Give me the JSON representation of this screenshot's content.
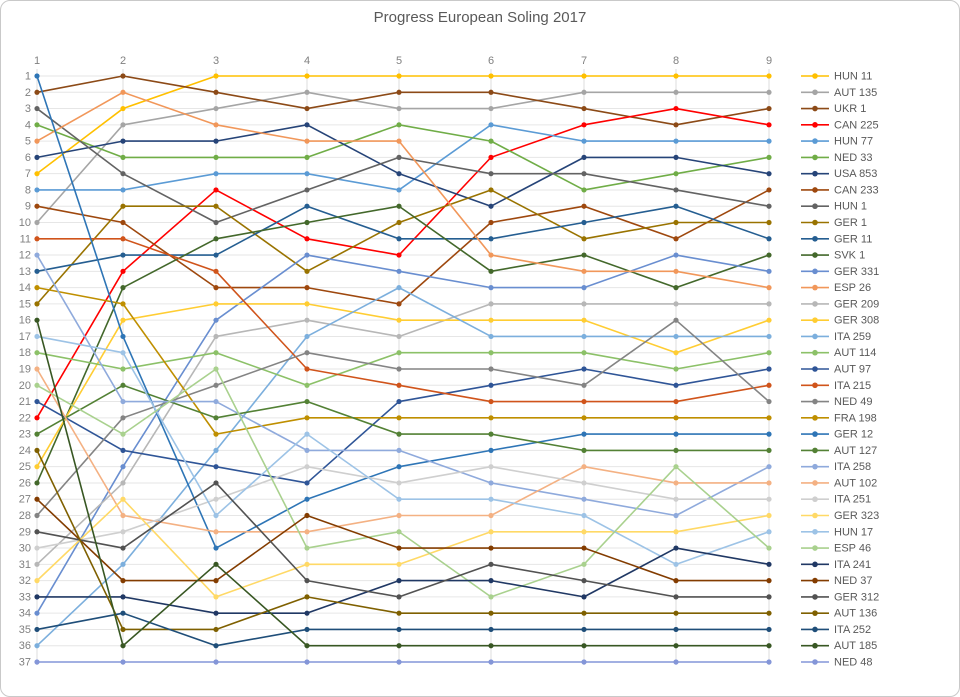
{
  "title": "Progress European Soling 2017",
  "chart_data": {
    "type": "line",
    "subtype": "bump-chart",
    "title": "Progress European Soling 2017",
    "x": [
      1,
      2,
      3,
      4,
      5,
      6,
      7,
      8,
      9
    ],
    "x_axis": {
      "position": "top",
      "labels": [
        "1",
        "2",
        "3",
        "4",
        "5",
        "6",
        "7",
        "8",
        "9"
      ]
    },
    "y_axis": {
      "position": "left",
      "inverted": true,
      "min": 1,
      "max": 37,
      "labels": [
        "1",
        "2",
        "3",
        "4",
        "5",
        "6",
        "7",
        "8",
        "9",
        "10",
        "11",
        "12",
        "13",
        "14",
        "15",
        "16",
        "17",
        "18",
        "19",
        "20",
        "21",
        "22",
        "23",
        "24",
        "25",
        "26",
        "27",
        "28",
        "29",
        "30",
        "31",
        "32",
        "33",
        "34",
        "35",
        "36",
        "37"
      ]
    },
    "grid": true,
    "legend_position": "right",
    "axis_text_color": "#808080",
    "title_color": "#595959",
    "gridline_color": "#e6e6e6",
    "series": [
      {
        "name": "HUN 11",
        "color": "#FFC000",
        "values": [
          7,
          3,
          1,
          1,
          1,
          1,
          1,
          1,
          1
        ]
      },
      {
        "name": "AUT 135",
        "color": "#A5A5A5",
        "values": [
          10,
          4,
          3,
          2,
          3,
          3,
          2,
          2,
          2
        ]
      },
      {
        "name": "UKR 1",
        "color": "#8C4A17",
        "values": [
          2,
          1,
          2,
          3,
          2,
          2,
          3,
          4,
          3
        ]
      },
      {
        "name": "CAN 225",
        "color": "#FF0000",
        "values": [
          22,
          13,
          8,
          11,
          12,
          6,
          4,
          3,
          4
        ]
      },
      {
        "name": "HUN 77",
        "color": "#5B9BD5",
        "values": [
          8,
          8,
          7,
          7,
          8,
          4,
          5,
          5,
          5
        ]
      },
      {
        "name": "NED 33",
        "color": "#70AD47",
        "values": [
          4,
          6,
          6,
          6,
          4,
          5,
          8,
          7,
          6
        ]
      },
      {
        "name": "USA 853",
        "color": "#264478",
        "values": [
          6,
          5,
          5,
          4,
          7,
          9,
          6,
          6,
          7
        ]
      },
      {
        "name": "CAN 233",
        "color": "#9E480E",
        "values": [
          9,
          10,
          14,
          14,
          15,
          10,
          9,
          11,
          8
        ]
      },
      {
        "name": "HUN 1",
        "color": "#636363",
        "values": [
          3,
          7,
          10,
          8,
          6,
          7,
          7,
          8,
          9
        ]
      },
      {
        "name": "GER 1",
        "color": "#997300",
        "values": [
          15,
          9,
          9,
          13,
          10,
          8,
          11,
          10,
          10
        ]
      },
      {
        "name": "GER 11",
        "color": "#255E91",
        "values": [
          13,
          12,
          12,
          9,
          11,
          11,
          10,
          9,
          11
        ]
      },
      {
        "name": "SVK 1",
        "color": "#43682B",
        "values": [
          26,
          14,
          11,
          10,
          9,
          13,
          12,
          14,
          12
        ]
      },
      {
        "name": "GER 331",
        "color": "#698ED0",
        "values": [
          34,
          25,
          16,
          12,
          13,
          14,
          14,
          12,
          13
        ]
      },
      {
        "name": "ESP 26",
        "color": "#F1975A",
        "values": [
          5,
          2,
          4,
          5,
          5,
          12,
          13,
          13,
          14
        ]
      },
      {
        "name": "GER 209",
        "color": "#B7B7B7",
        "values": [
          31,
          26,
          17,
          16,
          17,
          15,
          15,
          15,
          15
        ]
      },
      {
        "name": "GER 308",
        "color": "#FFCD33",
        "values": [
          25,
          16,
          15,
          15,
          16,
          16,
          16,
          18,
          16
        ]
      },
      {
        "name": "ITA 259",
        "color": "#7CAFDD",
        "values": [
          36,
          31,
          24,
          17,
          14,
          17,
          17,
          17,
          17
        ]
      },
      {
        "name": "AUT 114",
        "color": "#8CC168",
        "values": [
          18,
          19,
          18,
          20,
          18,
          18,
          18,
          19,
          18
        ]
      },
      {
        "name": "AUT 97",
        "color": "#2F5597",
        "values": [
          21,
          24,
          25,
          26,
          21,
          20,
          19,
          20,
          19
        ]
      },
      {
        "name": "ITA 215",
        "color": "#D0541B",
        "values": [
          11,
          11,
          13,
          19,
          20,
          21,
          21,
          21,
          20
        ]
      },
      {
        "name": "NED 49",
        "color": "#848484",
        "values": [
          28,
          22,
          20,
          18,
          19,
          19,
          20,
          16,
          21
        ]
      },
      {
        "name": "FRA 198",
        "color": "#BF8F00",
        "values": [
          14,
          15,
          23,
          22,
          22,
          22,
          22,
          22,
          22
        ]
      },
      {
        "name": "GER 12",
        "color": "#2E75B6",
        "values": [
          1,
          17,
          30,
          27,
          25,
          24,
          23,
          23,
          23
        ]
      },
      {
        "name": "AUT 127",
        "color": "#538135",
        "values": [
          23,
          20,
          22,
          21,
          23,
          23,
          24,
          24,
          24
        ]
      },
      {
        "name": "ITA 258",
        "color": "#8FAADC",
        "values": [
          12,
          21,
          21,
          24,
          24,
          26,
          27,
          28,
          25
        ]
      },
      {
        "name": "AUT 102",
        "color": "#F4B183",
        "values": [
          19,
          28,
          29,
          29,
          28,
          28,
          25,
          26,
          26
        ]
      },
      {
        "name": "ITA 251",
        "color": "#CFCFCF",
        "values": [
          30,
          29,
          27,
          25,
          26,
          25,
          26,
          27,
          27
        ]
      },
      {
        "name": "GER 323",
        "color": "#FFD966",
        "values": [
          32,
          27,
          33,
          31,
          31,
          29,
          29,
          29,
          28
        ]
      },
      {
        "name": "HUN 17",
        "color": "#9DC3E6",
        "values": [
          17,
          18,
          28,
          23,
          27,
          27,
          28,
          31,
          29
        ]
      },
      {
        "name": "ESP 46",
        "color": "#A9D18E",
        "values": [
          20,
          23,
          19,
          30,
          29,
          33,
          31,
          25,
          30
        ]
      },
      {
        "name": "ITA 241",
        "color": "#203864",
        "values": [
          33,
          33,
          34,
          34,
          32,
          32,
          33,
          30,
          31
        ]
      },
      {
        "name": "NED 37",
        "color": "#833C00",
        "values": [
          27,
          32,
          32,
          28,
          30,
          30,
          30,
          32,
          32
        ]
      },
      {
        "name": "GER 312",
        "color": "#525252",
        "values": [
          29,
          30,
          26,
          32,
          33,
          31,
          32,
          33,
          33
        ]
      },
      {
        "name": "AUT 136",
        "color": "#7F6000",
        "values": [
          24,
          35,
          35,
          33,
          34,
          34,
          34,
          34,
          34
        ]
      },
      {
        "name": "ITA 252",
        "color": "#1F4E79",
        "values": [
          35,
          34,
          36,
          35,
          35,
          35,
          35,
          35,
          35
        ]
      },
      {
        "name": "AUT 185",
        "color": "#385723",
        "values": [
          16,
          36,
          31,
          36,
          36,
          36,
          36,
          36,
          36
        ]
      },
      {
        "name": "NED 48",
        "color": "#8496D8",
        "values": [
          37,
          37,
          37,
          37,
          37,
          37,
          37,
          37,
          37
        ]
      }
    ]
  }
}
